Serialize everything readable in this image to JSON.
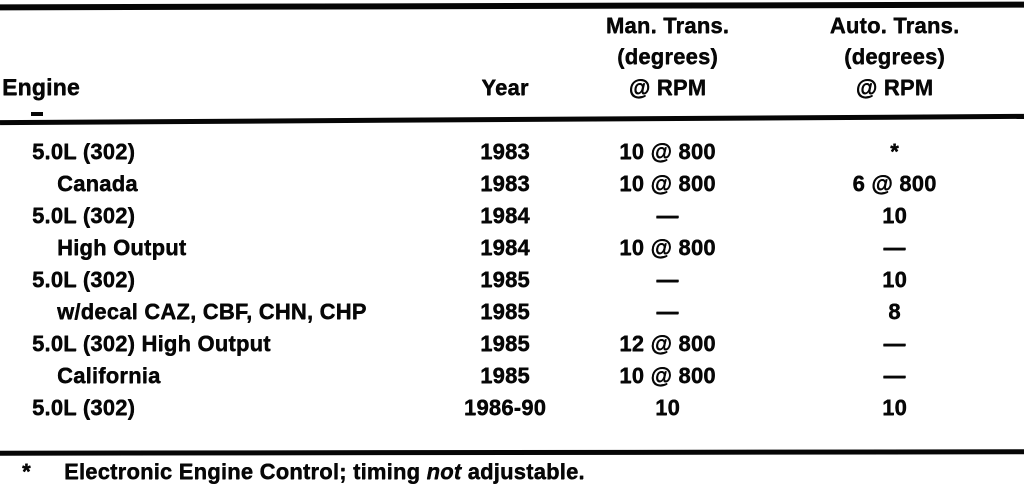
{
  "page": {
    "background": "#ffffff",
    "ink": "#060606"
  },
  "table": {
    "header": {
      "engine": "Engine",
      "year": "Year",
      "man_trans": {
        "l1": "Man. Trans.",
        "l2": "(degrees)",
        "l3": "@ RPM"
      },
      "auto_trans": {
        "l1": "Auto. Trans.",
        "l2": "(degrees)",
        "l3": "@ RPM"
      }
    },
    "rows": [
      {
        "engine": "5.0L (302)",
        "indent": false,
        "year": "1983",
        "man": "10 @ 800",
        "auto": "*"
      },
      {
        "engine": "Canada",
        "indent": true,
        "year": "1983",
        "man": "10 @ 800",
        "auto": "6 @ 800"
      },
      {
        "engine": "5.0L (302)",
        "indent": false,
        "year": "1984",
        "man": "—",
        "auto": "10"
      },
      {
        "engine": "High Output",
        "indent": true,
        "year": "1984",
        "man": "10 @ 800",
        "auto": "—"
      },
      {
        "engine": "5.0L (302)",
        "indent": false,
        "year": "1985",
        "man": "—",
        "auto": "10"
      },
      {
        "engine": "w/decal CAZ, CBF, CHN, CHP",
        "indent": true,
        "year": "1985",
        "man": "—",
        "auto": "8"
      },
      {
        "engine": "5.0L (302) High Output",
        "indent": false,
        "year": "1985",
        "man": "12 @ 800",
        "auto": "—"
      },
      {
        "engine": "California",
        "indent": true,
        "year": "1985",
        "man": "10 @ 800",
        "auto": "—"
      },
      {
        "engine": "5.0L (302)",
        "indent": false,
        "year": "1986-90",
        "man": "10",
        "auto": "10"
      }
    ],
    "footnote": {
      "symbol": "*",
      "text_before": "Electronic Engine Control; timing ",
      "emphasis": "not",
      "text_after": " adjustable."
    }
  }
}
